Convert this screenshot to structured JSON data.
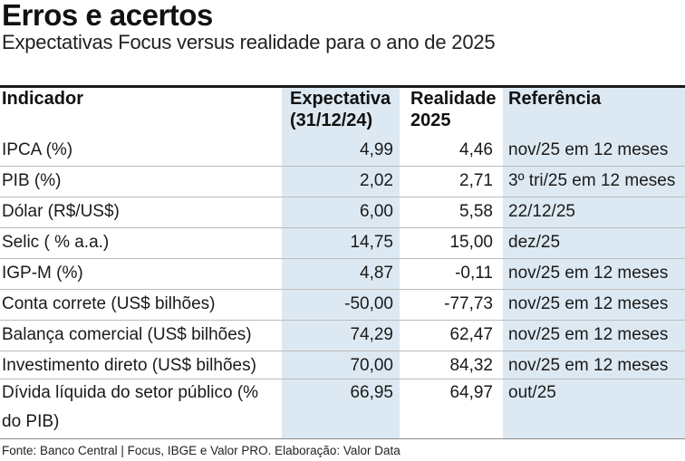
{
  "title": "Erros e acertos",
  "subtitle": "Expectativas Focus versus realidade para o ano de 2025",
  "headers": {
    "indicator": "Indicador",
    "expectation_line1": "Expectativa",
    "expectation_line2": "(31/12/24)",
    "reality_line1": "Realidade",
    "reality_line2": "2025",
    "reference": "Referência"
  },
  "rows": [
    {
      "indicator": "IPCA (%)",
      "expectation": "4,99",
      "reality": "4,46",
      "reference": "nov/25 em 12 meses"
    },
    {
      "indicator": "PIB (%)",
      "expectation": "2,02",
      "reality": "2,71",
      "reference": "3º tri/25 em 12 meses"
    },
    {
      "indicator": "Dólar (R$/US$)",
      "expectation": "6,00",
      "reality": "5,58",
      "reference": "22/12/25"
    },
    {
      "indicator": "Selic ( % a.a.)",
      "expectation": "14,75",
      "reality": "15,00",
      "reference": "dez/25"
    },
    {
      "indicator": "IGP-M (%)",
      "expectation": "4,87",
      "reality": "-0,11",
      "reference": "nov/25 em 12 meses"
    },
    {
      "indicator": "Conta correte (US$ bilhões)",
      "expectation": "-50,00",
      "reality": "-77,73",
      "reference": "nov/25 em 12 meses"
    },
    {
      "indicator": "Balança comercial (US$ bilhões)",
      "expectation": "74,29",
      "reality": "62,47",
      "reference": "nov/25 em 12 meses"
    },
    {
      "indicator": "Investimento direto (US$ bilhões)",
      "expectation": "70,00",
      "reality": "84,32",
      "reference": "nov/25 em 12 meses"
    },
    {
      "indicator": "Dívida líquida do setor público (% do PIB)",
      "expectation": "66,95",
      "reality": "64,97",
      "reference": "out/25"
    }
  ],
  "source": "Fonte: Banco Central | Focus, IBGE e Valor PRO. Elaboração: Valor Data",
  "colors": {
    "column_shade": "#dde9f2",
    "rule": "#1a1a1a"
  }
}
